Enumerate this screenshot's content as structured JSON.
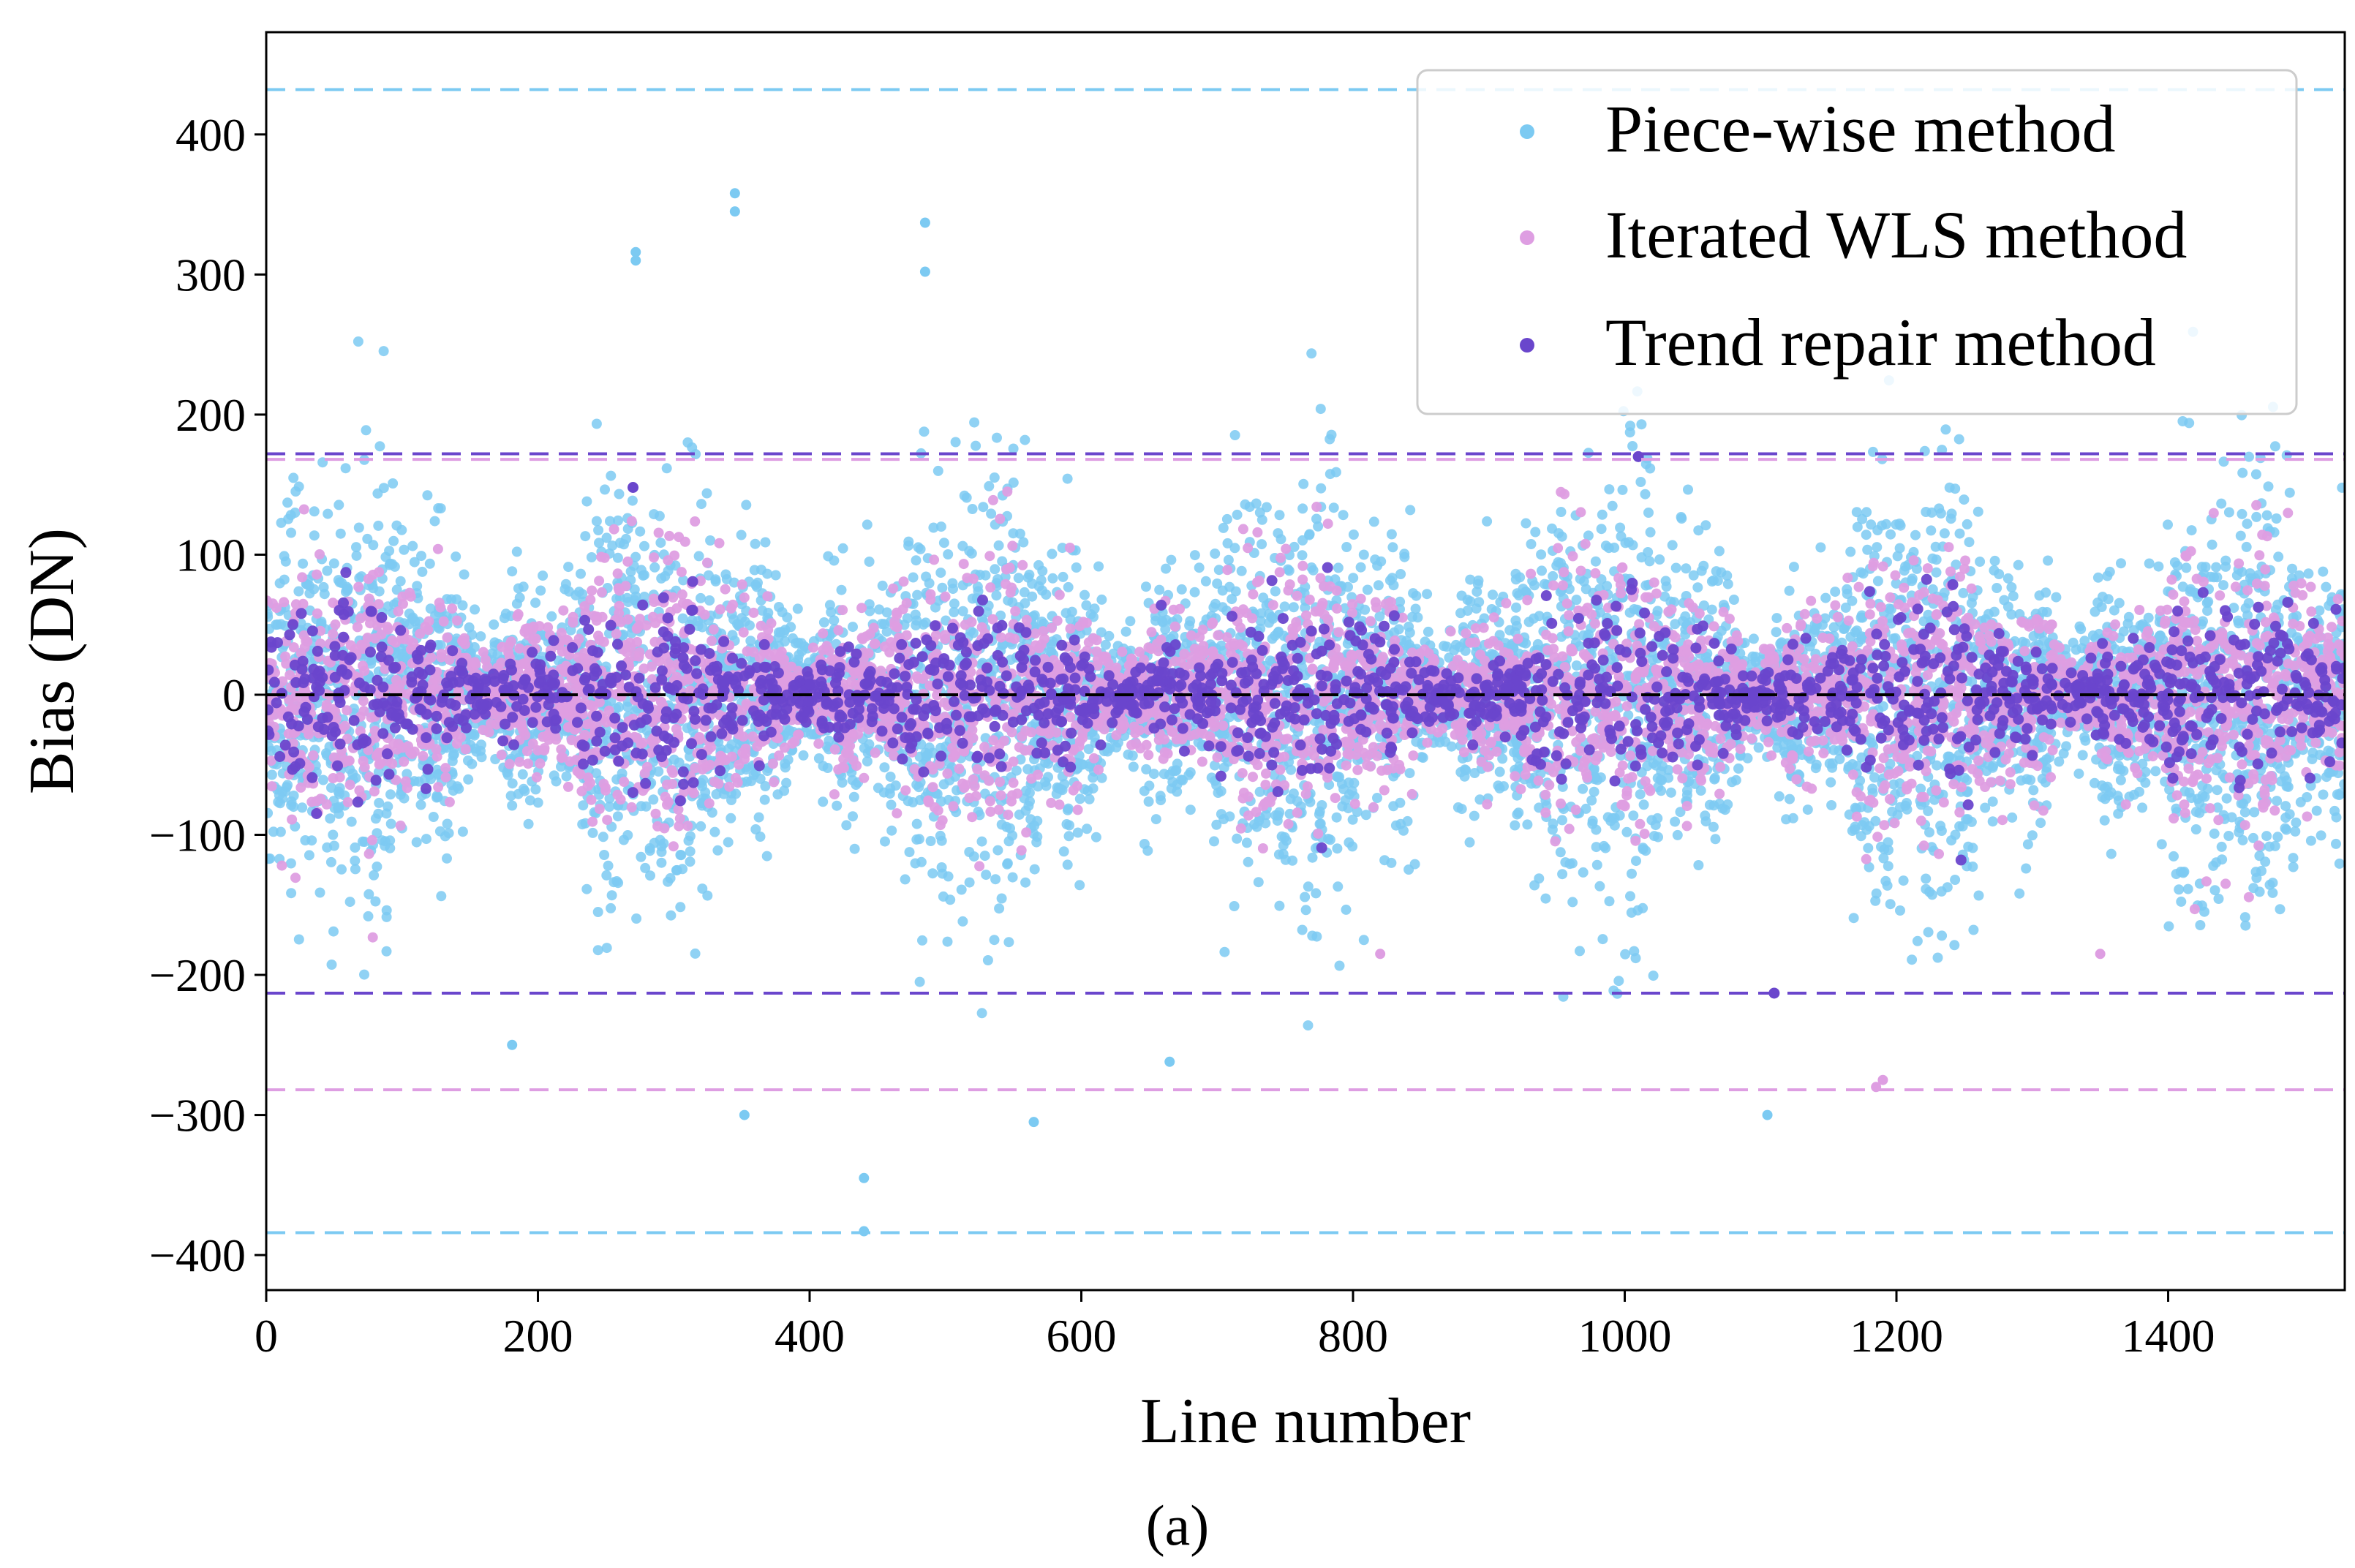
{
  "chart_data": {
    "type": "scatter",
    "title": "",
    "xlabel": "Line number",
    "ylabel": "Bias (DN)",
    "caption": "(a)",
    "xlim": [
      0,
      1530
    ],
    "ylim": [
      -425,
      473
    ],
    "xticks": [
      0,
      200,
      400,
      600,
      800,
      1000,
      1200,
      1400
    ],
    "xtick_labels": [
      "0",
      "200",
      "400",
      "600",
      "800",
      "1000",
      "1200",
      "1400"
    ],
    "yticks": [
      400,
      300,
      200,
      100,
      0,
      -100,
      -200,
      -300,
      -400
    ],
    "ytick_labels": [
      "400",
      "300",
      "200",
      "100",
      "0",
      "−100",
      "−200",
      "−300",
      "−400"
    ],
    "legend_position": "top-right",
    "series": [
      {
        "name": "Piece-wise method",
        "color": "#7ccaf2",
        "approx_center": 0,
        "approx_spread_sd": 70,
        "approx_range": [
          -385,
          358
        ],
        "notable_points": [
          {
            "x": 345,
            "y": 358
          },
          {
            "x": 345,
            "y": 345
          },
          {
            "x": 485,
            "y": 337
          },
          {
            "x": 485,
            "y": 302
          },
          {
            "x": 272,
            "y": 316
          },
          {
            "x": 272,
            "y": 310
          },
          {
            "x": 440,
            "y": -345
          },
          {
            "x": 440,
            "y": -383
          },
          {
            "x": 565,
            "y": -305
          },
          {
            "x": 1105,
            "y": -300
          },
          {
            "x": 352,
            "y": -300
          },
          {
            "x": 665,
            "y": -262
          },
          {
            "x": 181,
            "y": -250
          }
        ]
      },
      {
        "name": "Iterated WLS method",
        "color": "#de9ee2",
        "approx_center": 0,
        "approx_spread_sd": 45,
        "approx_range": [
          -282,
          150
        ],
        "notable_points": [
          {
            "x": 1185,
            "y": -280
          },
          {
            "x": 1190,
            "y": -275
          },
          {
            "x": 820,
            "y": -185
          },
          {
            "x": 1350,
            "y": -185
          }
        ]
      },
      {
        "name": "Trend repair method",
        "color": "#6a46cc",
        "approx_center": 0,
        "approx_spread_sd": 30,
        "approx_range": [
          -214,
          170
        ],
        "notable_points": [
          {
            "x": 1010,
            "y": 170
          },
          {
            "x": 1110,
            "y": -213
          },
          {
            "x": 270,
            "y": 148
          }
        ]
      }
    ],
    "reference_lines": [
      {
        "name": "Piece-wise upper bound",
        "y": 432,
        "color": "#7ccaf2",
        "style": "dashed"
      },
      {
        "name": "Piece-wise lower bound",
        "y": -384,
        "color": "#7ccaf2",
        "style": "dashed"
      },
      {
        "name": "Iterated WLS upper bound",
        "y": 168,
        "color": "#de9ee2",
        "style": "dashed"
      },
      {
        "name": "Iterated WLS lower bound",
        "y": -282,
        "color": "#de9ee2",
        "style": "dashed"
      },
      {
        "name": "Trend repair upper bound",
        "y": 172,
        "color": "#6a46cc",
        "style": "dashed"
      },
      {
        "name": "Trend repair lower bound",
        "y": -213,
        "color": "#6a46cc",
        "style": "dashed"
      },
      {
        "name": "Zero line",
        "y": 0,
        "color": "#000000",
        "style": "dashed"
      }
    ]
  }
}
